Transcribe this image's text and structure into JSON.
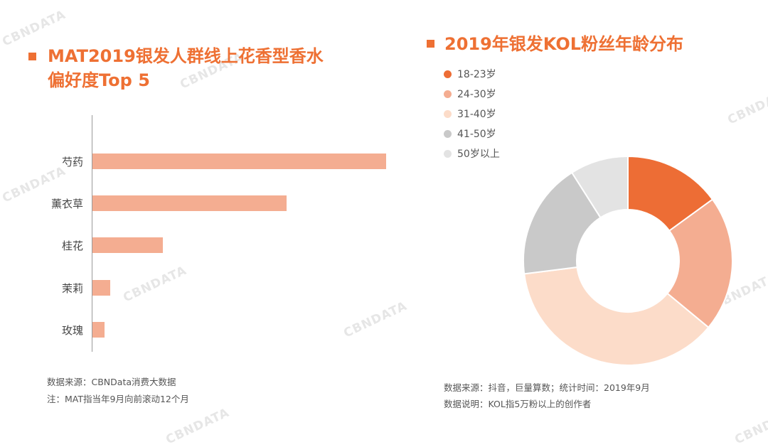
{
  "watermark": "CBNDATA",
  "left": {
    "title_line1": "MAT2019银发人群线上花香型香水",
    "title_line2": "偏好度Top 5",
    "note1": "数据来源：CBNData消费大数据",
    "note2": "注：MAT指当年9月向前滚动12个月"
  },
  "right": {
    "title": "2019年银发KOL粉丝年龄分布",
    "note1": "数据来源：抖音，巨量算数；统计时间：2019年9月",
    "note2": "数据说明：KOL指5万粉以上的创作者"
  },
  "colors": {
    "accent": "#ee7033",
    "bar": "#f4ad91"
  },
  "chart_data": [
    {
      "type": "bar",
      "orientation": "horizontal",
      "title": "MAT2019银发人群线上花香型香水偏好度Top 5",
      "categories": [
        "芍药",
        "薰衣草",
        "桂花",
        "茉莉",
        "玫瑰"
      ],
      "values": [
        100,
        66,
        24,
        6,
        4
      ],
      "value_axis_shown": false,
      "grid": false
    },
    {
      "type": "pie",
      "variant": "donut",
      "title": "2019年银发KOL粉丝年龄分布",
      "legend_position": "top-left",
      "slices": [
        {
          "label": "18-23岁",
          "value": 15,
          "color": "#ed6d35"
        },
        {
          "label": "24-30岁",
          "value": 21,
          "color": "#f4ad91"
        },
        {
          "label": "31-40岁",
          "value": 37,
          "color": "#fcdcc9"
        },
        {
          "label": "41-50岁",
          "value": 18,
          "color": "#c9c9c9"
        },
        {
          "label": "50岁以上",
          "value": 9,
          "color": "#e3e3e3"
        }
      ]
    }
  ]
}
